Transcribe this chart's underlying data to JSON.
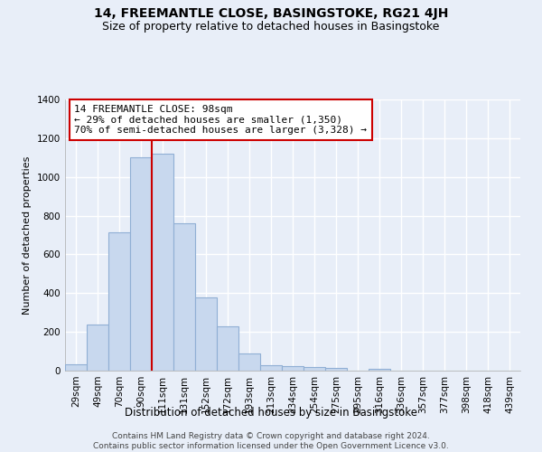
{
  "title": "14, FREEMANTLE CLOSE, BASINGSTOKE, RG21 4JH",
  "subtitle": "Size of property relative to detached houses in Basingstoke",
  "xlabel": "Distribution of detached houses by size in Basingstoke",
  "ylabel": "Number of detached properties",
  "bar_labels": [
    "29sqm",
    "49sqm",
    "70sqm",
    "90sqm",
    "111sqm",
    "131sqm",
    "152sqm",
    "172sqm",
    "193sqm",
    "213sqm",
    "234sqm",
    "254sqm",
    "275sqm",
    "295sqm",
    "316sqm",
    "336sqm",
    "357sqm",
    "377sqm",
    "398sqm",
    "418sqm",
    "439sqm"
  ],
  "bar_values": [
    35,
    240,
    715,
    1100,
    1120,
    760,
    380,
    230,
    90,
    30,
    25,
    20,
    15,
    0,
    10,
    0,
    0,
    0,
    0,
    0,
    0
  ],
  "bar_face_color": "#c8d8ee",
  "bar_edge_color": "#90afd4",
  "vline_color": "#cc0000",
  "annotation_line1": "14 FREEMANTLE CLOSE: 98sqm",
  "annotation_line2": "← 29% of detached houses are smaller (1,350)",
  "annotation_line3": "70% of semi-detached houses are larger (3,328) →",
  "annotation_box_color": "white",
  "annotation_box_edge": "#cc0000",
  "ylim": [
    0,
    1400
  ],
  "yticks": [
    0,
    200,
    400,
    600,
    800,
    1000,
    1200,
    1400
  ],
  "footer_line1": "Contains HM Land Registry data © Crown copyright and database right 2024.",
  "footer_line2": "Contains public sector information licensed under the Open Government Licence v3.0.",
  "background_color": "#e8eef8",
  "plot_bg_color": "#e8eef8",
  "grid_color": "#ffffff",
  "title_fontsize": 10,
  "subtitle_fontsize": 9,
  "ylabel_fontsize": 8,
  "xlabel_fontsize": 8.5,
  "tick_fontsize": 7.5,
  "annot_fontsize": 8,
  "footer_fontsize": 6.5
}
